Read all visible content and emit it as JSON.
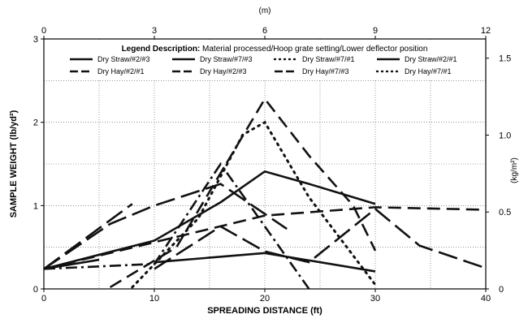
{
  "chart_data": {
    "type": "line",
    "xlabel": "SPREADING DISTANCE (ft)",
    "ylabel": "SAMPLE WEIGHT (lb/yd²)",
    "x2label": "(m)",
    "y2label": "(kg/m²)",
    "xlim": [
      0,
      40
    ],
    "ylim": [
      0,
      3
    ],
    "x2lim": [
      0,
      12
    ],
    "y2lim": [
      0,
      1.625
    ],
    "xticks": [
      "0",
      "10",
      "20",
      "30",
      "40"
    ],
    "yticks": [
      "0",
      "1",
      "2",
      "3"
    ],
    "x2ticks": [
      "0",
      "3",
      "6",
      "9",
      "12"
    ],
    "y2ticks": [
      "0",
      "0.5",
      "1.0",
      "1.5"
    ],
    "grid": true,
    "legend": {
      "title_bold": "Legend Description:",
      "title_rest": " Material processed/Hoop grate setting/Lower deflector position",
      "placement": "top",
      "entries": [
        "Dry Straw/#2/#3",
        "Dry Straw/#7/#3",
        "Dry Straw/#7/#1",
        "Dry Straw/#2/#1",
        "Dry Hay/#2/#1",
        "Dry Hay/#2/#3",
        "Dry Hay/#7/#3",
        "Dry Hay/#7/#1"
      ]
    },
    "series": [
      {
        "name": "Dry Straw/#2/#3",
        "dash": "solid",
        "x": [
          0,
          10,
          16,
          20,
          24,
          30
        ],
        "y": [
          0.24,
          0.58,
          1.04,
          1.41,
          1.26,
          1.02
        ]
      },
      {
        "name": "Dry Straw/#7/#3",
        "dash": "solid",
        "x": [
          10,
          20,
          30
        ],
        "y": [
          0.32,
          0.43,
          0.21
        ]
      },
      {
        "name": "Dry Straw/#7/#1",
        "dash": "dot",
        "x": [
          8,
          14,
          18,
          20,
          24,
          30
        ],
        "y": [
          0.02,
          0.85,
          1.85,
          2.0,
          1.1,
          0.05
        ]
      },
      {
        "name": "Dry Straw/#2/#1",
        "dash": "solid",
        "x": [
          0,
          5
        ],
        "y": [
          0.24,
          0.35
        ]
      },
      {
        "name": "Dry Hay/#2/#1",
        "dash": "longdash",
        "x": [
          0,
          6,
          10,
          16,
          22
        ],
        "y": [
          0.24,
          0.78,
          1.0,
          1.26,
          0.72
        ]
      },
      {
        "name": "Dry Hay/#2/#3",
        "dash": "dash",
        "x": [
          0,
          10,
          20,
          30,
          40
        ],
        "y": [
          0.24,
          0.56,
          0.88,
          0.98,
          0.95
        ]
      },
      {
        "name": "Dry Hay/#7/#3",
        "dash": "longdash",
        "x": [
          10,
          16,
          20,
          24,
          30,
          34,
          40
        ],
        "y": [
          0.24,
          0.75,
          0.45,
          0.32,
          0.96,
          0.52,
          0.25
        ]
      },
      {
        "name": "Dry Hay/#7/#1",
        "dash": "dashdot",
        "x": [
          0,
          10,
          16,
          24
        ],
        "y": [
          0.24,
          0.3,
          1.5,
          0.0
        ]
      },
      {
        "name": "Dry Hay/#7/#1 (b)",
        "dash": "longdash",
        "x": [
          0,
          8
        ],
        "y": [
          0.24,
          1.02
        ]
      },
      {
        "name": "Dry Hay/#2/#3 (b)",
        "dash": "dash",
        "x": [
          6,
          12,
          20,
          24,
          28,
          30
        ],
        "y": [
          0.02,
          0.5,
          2.28,
          1.6,
          1.0,
          0.46
        ]
      }
    ]
  }
}
